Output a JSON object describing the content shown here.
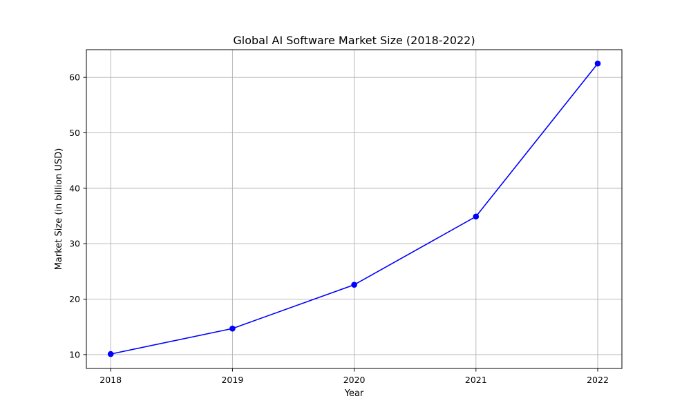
{
  "chart_data": {
    "type": "line",
    "title": "Global AI Software Market Size (2018-2022)",
    "xlabel": "Year",
    "ylabel": "Market Size (in billion USD)",
    "categories": [
      "2018",
      "2019",
      "2020",
      "2021",
      "2022"
    ],
    "series": [
      {
        "values": [
          10.1,
          14.7,
          22.6,
          34.9,
          62.5
        ],
        "color": "#0000ff",
        "marker": "circle"
      }
    ],
    "y_ticks": [
      10,
      20,
      30,
      40,
      50,
      60
    ],
    "ylim": [
      7.5,
      65
    ],
    "grid": true,
    "legend": "none"
  }
}
